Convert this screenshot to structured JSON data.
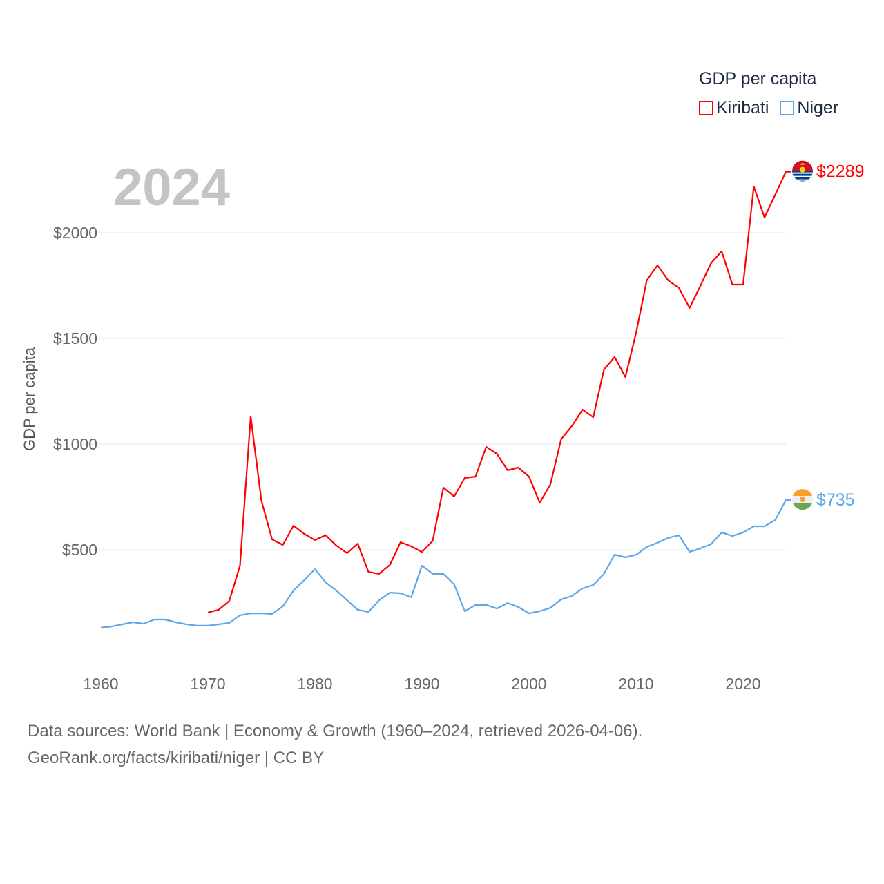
{
  "legend": {
    "title": "GDP per capita",
    "items": [
      {
        "label": "Kiribati",
        "color": "#ff0000"
      },
      {
        "label": "Niger",
        "color": "#5ea6e8"
      }
    ]
  },
  "current_year": "2024",
  "footer": {
    "line1": "Data sources: World Bank | Economy & Growth (1960–2024, retrieved 2026-04-06).",
    "line2": "GeoRank.org/facts/kiribati/niger | CC BY"
  },
  "chart_data": {
    "type": "line",
    "title": "",
    "xlabel": "",
    "ylabel": "GDP per capita",
    "xlim": [
      1960,
      2024
    ],
    "ylim": [
      0,
      2300
    ],
    "grid": true,
    "legend_position": "top-right",
    "x_ticks": [
      "1960",
      "1970",
      "1980",
      "1990",
      "2000",
      "2010",
      "2020"
    ],
    "y_ticks": [
      {
        "value": 500,
        "label": "$500"
      },
      {
        "value": 1000,
        "label": "$1000"
      },
      {
        "value": 1500,
        "label": "$1500"
      },
      {
        "value": 2000,
        "label": "$2000"
      }
    ],
    "series": [
      {
        "name": "Kiribati",
        "color": "#ff0000",
        "end_label": "$2289",
        "start_year": 1970,
        "values": [
          203,
          216,
          258,
          425,
          1131,
          732,
          549,
          523,
          614,
          575,
          546,
          569,
          520,
          484,
          529,
          395,
          386,
          428,
          536,
          516,
          490,
          542,
          794,
          752,
          840,
          846,
          987,
          954,
          876,
          889,
          846,
          722,
          810,
          1023,
          1085,
          1163,
          1127,
          1353,
          1412,
          1317,
          1526,
          1775,
          1846,
          1775,
          1739,
          1644,
          1748,
          1856,
          1912,
          1755,
          1755,
          2219,
          2072,
          2180,
          2289
        ]
      },
      {
        "name": "Niger",
        "color": "#5ea6e8",
        "end_label": "$735",
        "start_year": 1960,
        "values": [
          131,
          137,
          147,
          157,
          150,
          170,
          170,
          157,
          147,
          141,
          141,
          147,
          154,
          190,
          199,
          199,
          196,
          232,
          307,
          356,
          408,
          346,
          307,
          261,
          216,
          206,
          261,
          297,
          294,
          275,
          425,
          386,
          386,
          337,
          209,
          239,
          239,
          222,
          248,
          229,
          199,
          209,
          225,
          265,
          281,
          317,
          333,
          386,
          477,
          464,
          476,
          513,
          533,
          556,
          569,
          490,
          507,
          526,
          582,
          565,
          582,
          611,
          611,
          641,
          735
        ]
      }
    ]
  }
}
